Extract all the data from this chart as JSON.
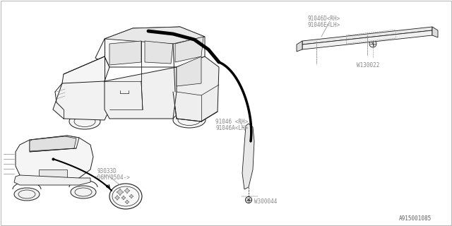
{
  "bg_color": "#ffffff",
  "line_color": "#1a1a1a",
  "label_color": "#888888",
  "thin_color": "#555555",
  "labels": {
    "part1": "91046D<RH>",
    "part1b": "91046E<LH>",
    "part2": "91046 <RH>",
    "part2b": "91046A<LH>",
    "part3": "93033D",
    "part3b": "<06MY0504->",
    "fastener1": "W130022",
    "fastener2": "W300044",
    "diagram_id": "A915001085"
  },
  "fig_width": 6.4,
  "fig_height": 3.2,
  "dpi": 100
}
